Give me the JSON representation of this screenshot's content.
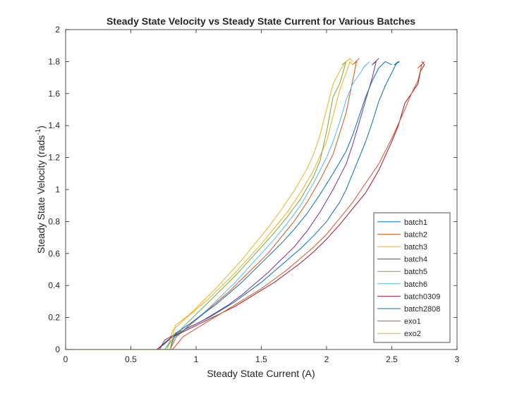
{
  "chart_data": {
    "type": "line",
    "title": "Steady State Velocity vs Steady State Current for Various Batches",
    "xlabel": "Steady State Current (A)",
    "ylabel": "Steady State Velocity (rads",
    "ylabel_sup": "-1",
    "ylabel_end": ")",
    "xlim": [
      0,
      3
    ],
    "ylim": [
      0,
      2
    ],
    "xticks": [
      0,
      0.5,
      1,
      1.5,
      2,
      2.5,
      3
    ],
    "xtick_labels": [
      "0",
      "0.5",
      "1",
      "1.5",
      "2",
      "2.5",
      "3"
    ],
    "yticks": [
      0,
      0.2,
      0.4,
      0.6,
      0.8,
      1,
      1.2,
      1.4,
      1.6,
      1.8,
      2
    ],
    "ytick_labels": [
      "0",
      "0.2",
      "0.4",
      "0.6",
      "0.8",
      "1",
      "1.2",
      "1.4",
      "1.6",
      "1.8",
      "2"
    ],
    "grid": false,
    "legend_position": "bottom-right",
    "series": [
      {
        "name": "batch1",
        "color": "#0072BD",
        "x": [
          0,
          0.7,
          0.75,
          0.82,
          0.9,
          1.0,
          1.1,
          1.2,
          1.3,
          1.4,
          1.5,
          1.6,
          1.7,
          1.8,
          1.9,
          2.0,
          2.05,
          2.1,
          2.15,
          2.2,
          2.25,
          2.3,
          2.35,
          2.4,
          2.45,
          2.5,
          2.53,
          2.55,
          2.52,
          2.56
        ],
        "y": [
          0,
          0,
          0.03,
          0.08,
          0.12,
          0.16,
          0.2,
          0.25,
          0.3,
          0.36,
          0.42,
          0.49,
          0.56,
          0.63,
          0.71,
          0.8,
          0.86,
          0.92,
          1.0,
          1.1,
          1.2,
          1.3,
          1.42,
          1.55,
          1.65,
          1.73,
          1.78,
          1.8,
          1.78,
          1.8
        ]
      },
      {
        "name": "batch2",
        "color": "#D95319",
        "x": [
          0,
          0.8,
          0.85,
          0.95,
          1.05,
          1.15,
          1.25,
          1.35,
          1.45,
          1.55,
          1.65,
          1.75,
          1.85,
          1.95,
          2.05,
          2.15,
          2.2,
          2.23,
          2.2,
          2.25
        ],
        "y": [
          0,
          0,
          0.08,
          0.15,
          0.22,
          0.29,
          0.36,
          0.44,
          0.52,
          0.6,
          0.7,
          0.8,
          0.92,
          1.06,
          1.22,
          1.48,
          1.68,
          1.8,
          1.78,
          1.82
        ]
      },
      {
        "name": "batch3",
        "color": "#EDB120",
        "x": [
          0,
          0.78,
          0.82,
          0.9,
          1.0,
          1.1,
          1.2,
          1.3,
          1.4,
          1.5,
          1.6,
          1.7,
          1.8,
          1.9,
          2.0,
          2.05,
          2.1,
          2.15,
          2.18,
          2.2,
          2.24
        ],
        "y": [
          0,
          0,
          0.12,
          0.18,
          0.25,
          0.32,
          0.4,
          0.48,
          0.57,
          0.66,
          0.76,
          0.86,
          0.98,
          1.12,
          1.3,
          1.46,
          1.62,
          1.73,
          1.8,
          1.78,
          1.8
        ]
      },
      {
        "name": "batch4",
        "color": "#7E2F8E",
        "x": [
          0,
          0.72,
          0.76,
          0.85,
          0.95,
          1.05,
          1.15,
          1.25,
          1.35,
          1.45,
          1.55,
          1.65,
          1.75,
          1.85,
          1.95,
          2.05,
          2.15,
          2.2,
          2.25,
          2.3,
          2.35,
          2.38,
          2.35,
          2.4
        ],
        "y": [
          0,
          0,
          0.06,
          0.1,
          0.14,
          0.18,
          0.23,
          0.28,
          0.34,
          0.41,
          0.48,
          0.56,
          0.64,
          0.74,
          0.86,
          1.0,
          1.16,
          1.28,
          1.42,
          1.56,
          1.7,
          1.8,
          1.78,
          1.82
        ]
      },
      {
        "name": "batch5",
        "color": "#77AC30",
        "x": [
          0,
          0.76,
          0.82,
          0.9,
          1.0,
          1.1,
          1.2,
          1.3,
          1.4,
          1.5,
          1.6,
          1.7,
          1.8,
          1.9,
          1.95,
          2.0,
          2.05,
          2.1,
          2.15,
          2.12,
          2.18
        ],
        "y": [
          0,
          0,
          0.06,
          0.14,
          0.22,
          0.3,
          0.38,
          0.46,
          0.55,
          0.64,
          0.73,
          0.83,
          0.94,
          1.08,
          1.18,
          1.36,
          1.58,
          1.66,
          1.8,
          1.78,
          1.82
        ]
      },
      {
        "name": "batch6",
        "color": "#4DBEEE",
        "x": [
          0,
          0.76,
          0.8,
          0.9,
          1.0,
          1.1,
          1.2,
          1.3,
          1.4,
          1.5,
          1.6,
          1.7,
          1.8,
          1.9,
          2.0,
          2.05,
          2.1,
          2.15,
          2.2,
          2.25,
          2.3,
          2.28,
          2.33
        ],
        "y": [
          0,
          0,
          0.05,
          0.12,
          0.19,
          0.26,
          0.34,
          0.42,
          0.51,
          0.6,
          0.69,
          0.79,
          0.9,
          1.04,
          1.2,
          1.3,
          1.42,
          1.56,
          1.66,
          1.72,
          1.78,
          1.76,
          1.8
        ]
      },
      {
        "name": "batch0309",
        "color": "#A2142F",
        "x": [
          0,
          0.7,
          0.8,
          0.9,
          1.0,
          1.1,
          1.2,
          1.3,
          1.4,
          1.5,
          1.6,
          1.7,
          1.8,
          1.9,
          2.0,
          2.1,
          2.2,
          2.3,
          2.4,
          2.5,
          2.55,
          2.6,
          2.65,
          2.7,
          2.72,
          2.75,
          2.73
        ],
        "y": [
          0,
          0,
          0.07,
          0.11,
          0.15,
          0.19,
          0.23,
          0.27,
          0.32,
          0.37,
          0.42,
          0.48,
          0.54,
          0.61,
          0.69,
          0.78,
          0.88,
          0.98,
          1.12,
          1.3,
          1.4,
          1.54,
          1.6,
          1.66,
          1.74,
          1.78,
          1.8
        ]
      },
      {
        "name": "batch2808",
        "color": "#0072BD",
        "x": [
          0,
          0.8,
          0.84,
          0.95,
          1.05,
          1.15,
          1.25,
          1.35,
          1.45,
          1.55,
          1.65,
          1.75,
          1.85,
          1.95,
          2.05,
          2.15,
          2.2,
          2.25,
          2.3,
          2.35,
          2.4,
          2.45,
          2.5
        ],
        "y": [
          0,
          0,
          0.1,
          0.16,
          0.22,
          0.28,
          0.35,
          0.42,
          0.5,
          0.58,
          0.66,
          0.75,
          0.85,
          0.97,
          1.1,
          1.24,
          1.34,
          1.46,
          1.58,
          1.68,
          1.76,
          1.8,
          1.78
        ]
      },
      {
        "name": "exo1",
        "color": "#D95319",
        "x": [
          0,
          0.82,
          0.9,
          1.0,
          1.1,
          1.2,
          1.3,
          1.4,
          1.5,
          1.6,
          1.7,
          1.8,
          1.9,
          2.0,
          2.1,
          2.2,
          2.3,
          2.4,
          2.5,
          2.6,
          2.65,
          2.7,
          2.73,
          2.7,
          2.75
        ],
        "y": [
          0,
          0,
          0.08,
          0.13,
          0.18,
          0.23,
          0.28,
          0.33,
          0.38,
          0.44,
          0.5,
          0.57,
          0.64,
          0.72,
          0.82,
          0.92,
          1.04,
          1.16,
          1.32,
          1.5,
          1.6,
          1.68,
          1.78,
          1.76,
          1.8
        ]
      },
      {
        "name": "exo2",
        "color": "#EDB120",
        "x": [
          0,
          0.8,
          0.84,
          0.95,
          1.05,
          1.15,
          1.25,
          1.35,
          1.45,
          1.55,
          1.65,
          1.75,
          1.85,
          1.9,
          1.95,
          2.0,
          2.05,
          2.1,
          2.15,
          2.18,
          2.2
        ],
        "y": [
          0,
          0,
          0.15,
          0.22,
          0.3,
          0.38,
          0.47,
          0.56,
          0.66,
          0.76,
          0.87,
          0.99,
          1.13,
          1.22,
          1.34,
          1.5,
          1.66,
          1.74,
          1.8,
          1.82,
          1.8
        ]
      }
    ]
  }
}
